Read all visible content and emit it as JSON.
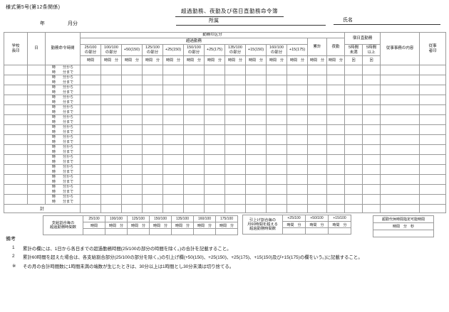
{
  "page": {
    "form_number": "様式第5号(第12条関係)",
    "title": "超過勤務、夜勤及び宿日直勤務命令簿",
    "year_label": "年",
    "month_label": "月分",
    "affiliation_label": "所属",
    "name_label": "氏名"
  },
  "table": {
    "headers": {
      "principal_seal": "学校長印",
      "day": "日",
      "command_time": "勤務命令時間",
      "work_category": "勤務の区分",
      "overtime": "超過勤務",
      "cumulative": "累計",
      "night_duty": "夜勤",
      "overnight_duty": "宿日直勤務",
      "under_5h": "5時間未満",
      "over_5h": "5時間以上",
      "duties_content": "従事事務の内容",
      "worker_seal": "従事者印"
    },
    "rate_columns": [
      {
        "line1": "25/100",
        "line2": "の部分",
        "unit": "時間"
      },
      {
        "line1": "100/100",
        "line2": "の部分",
        "unit": "時間　分"
      },
      {
        "line1": "+50(150)",
        "line2": "",
        "unit": "時間　分"
      },
      {
        "line1": "125/100",
        "line2": "の部分",
        "unit": "時間　分"
      },
      {
        "line1": "+25(150)",
        "line2": "",
        "unit": "時間　分"
      },
      {
        "line1": "150/100",
        "line2": "の部分",
        "unit": "時間　分"
      },
      {
        "line1": "+25(175)",
        "line2": "",
        "unit": "時間　分"
      },
      {
        "line1": "135/100",
        "line2": "の部分",
        "unit": "時間　分"
      },
      {
        "line1": "+15(150)",
        "line2": "",
        "unit": "時間　分"
      },
      {
        "line1": "160/100",
        "line2": "の部分",
        "unit": "時間　分"
      },
      {
        "line1": "+15(175)",
        "line2": "",
        "unit": "時間　分"
      }
    ],
    "cumulative_unit": "時間　分",
    "night_unit": "時間　分",
    "count_unit": "回",
    "row_from": "時　　分から",
    "row_to": "時　　分まで",
    "num_rows": 14,
    "total_label": "計"
  },
  "footer_boxes": {
    "paid_rate": {
      "label_lines": [
        "支給割合毎の",
        "超過勤務時間数"
      ],
      "columns": [
        {
          "rate": "25/100",
          "unit": "時間"
        },
        {
          "rate": "100/100",
          "unit": "時間　分"
        },
        {
          "rate": "125/100",
          "unit": "時間　分"
        },
        {
          "rate": "150/100",
          "unit": "時間　分"
        },
        {
          "rate": "135/100",
          "unit": "時間　分"
        },
        {
          "rate": "160/100",
          "unit": "時間　分"
        },
        {
          "rate": "175/100",
          "unit": "時間　分"
        }
      ]
    },
    "raised_rate": {
      "label_lines": [
        "引上げ割合毎の",
        "月60時間を超える",
        "超過勤務時間数"
      ],
      "columns": [
        {
          "rate": "+25/100",
          "unit": "時間　分"
        },
        {
          "rate": "+50/100",
          "unit": "時間　分"
        },
        {
          "rate": "+15/100",
          "unit": "時間　分"
        }
      ]
    },
    "compensatory": {
      "label": "超勤代休時間指定可能時間",
      "unit": "時間　分　秒"
    }
  },
  "notes": {
    "heading": "備考",
    "items": [
      {
        "no": "1",
        "text": "累計の欄には、1日から各日までの超過勤務時間(25/100の部分の時間を除く。)の合計を記載すること。"
      },
      {
        "no": "2",
        "text": "累計60時間を超えた場合は、各支給割合部分(25/100の部分を除く。)の引上げ欄(+50(150)、+25(150)、+25(175)、+15(150)及び+15(175)の欄をいう。)に記載すること。"
      },
      {
        "no": "※",
        "text": "その月の合計時間数に1時間未満の端数が生じたときは、30分以上は1時間とし30分未満は切り捨てる。"
      }
    ]
  }
}
